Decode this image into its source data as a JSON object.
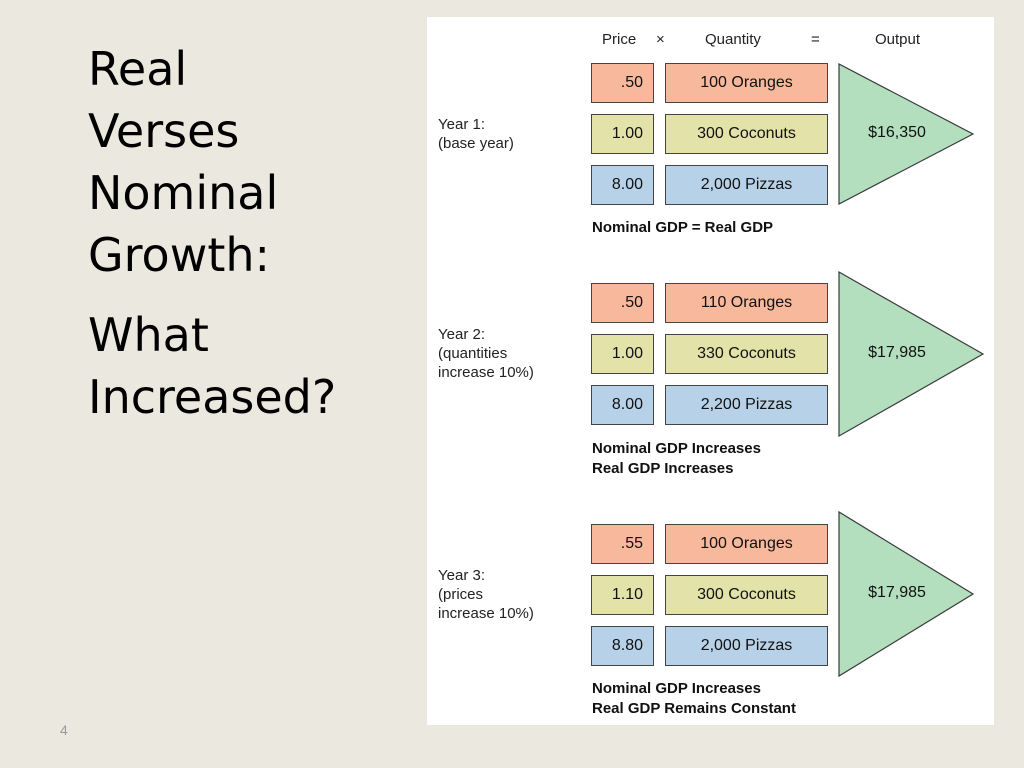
{
  "slide": {
    "title_lines": [
      "Real",
      "Verses",
      "Nominal",
      "Growth:"
    ],
    "subtitle_lines": [
      "What",
      "Increased?"
    ],
    "page_number": "4"
  },
  "figure": {
    "header": {
      "price": "Price",
      "times": "×",
      "quantity": "Quantity",
      "equals": "=",
      "output": "Output"
    },
    "colors": {
      "orange": "#f7b89b",
      "yellow": "#e3e2a9",
      "blue": "#b7d1e8",
      "output_triangle": "#b3dfbf"
    },
    "years": [
      {
        "label": "Year 1:\n(base year)",
        "rows": [
          {
            "price": ".50",
            "quantity": "100 Oranges"
          },
          {
            "price": "1.00",
            "quantity": "300 Coconuts"
          },
          {
            "price": "8.00",
            "quantity": "2,000 Pizzas"
          }
        ],
        "output": "$16,350",
        "note_lines": [
          "Nominal GDP = Real GDP"
        ]
      },
      {
        "label": "Year 2:\n(quantities\nincrease 10%)",
        "rows": [
          {
            "price": ".50",
            "quantity": "110 Oranges"
          },
          {
            "price": "1.00",
            "quantity": "330 Coconuts"
          },
          {
            "price": "8.00",
            "quantity": "2,200 Pizzas"
          }
        ],
        "output": "$17,985",
        "note_lines": [
          "Nominal GDP Increases",
          "Real GDP Increases"
        ]
      },
      {
        "label": "Year 3:\n(prices\nincrease 10%)",
        "rows": [
          {
            "price": ".55",
            "quantity": "100 Oranges"
          },
          {
            "price": "1.10",
            "quantity": "300 Coconuts"
          },
          {
            "price": "8.80",
            "quantity": "2,000 Pizzas"
          }
        ],
        "output": "$17,985",
        "note_lines": [
          "Nominal GDP Increases",
          "Real GDP Remains Constant"
        ]
      }
    ]
  }
}
